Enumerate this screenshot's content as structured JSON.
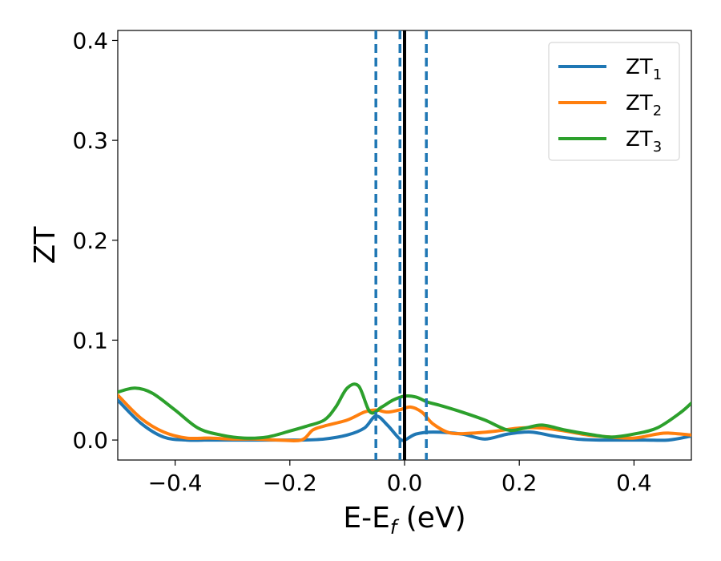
{
  "chart_data": {
    "type": "line",
    "xlabel": "E-E",
    "xlabel_sub": "f",
    "xlabel_unit": " (eV)",
    "ylabel": "ZT",
    "xlim": [
      -0.5,
      0.5
    ],
    "ylim": [
      -0.02,
      0.41
    ],
    "xticks": [
      -0.4,
      -0.2,
      0.0,
      0.2,
      0.4
    ],
    "xtick_labels": [
      "−0.4",
      "−0.2",
      "0.0",
      "0.2",
      "0.4"
    ],
    "yticks": [
      0.0,
      0.1,
      0.2,
      0.3,
      0.4
    ],
    "ytick_labels": [
      "0.0",
      "0.1",
      "0.2",
      "0.3",
      "0.4"
    ],
    "grid": false,
    "legend_position": "top-right",
    "series": [
      {
        "name": "ZT",
        "name_sub": "1",
        "color": "#1f77b4",
        "x": [
          -0.5,
          -0.46,
          -0.42,
          -0.38,
          -0.34,
          -0.3,
          -0.26,
          -0.22,
          -0.18,
          -0.14,
          -0.1,
          -0.07,
          -0.05,
          -0.03,
          -0.01,
          0.0,
          0.02,
          0.05,
          0.1,
          0.14,
          0.18,
          0.22,
          0.26,
          0.3,
          0.34,
          0.38,
          0.42,
          0.46,
          0.5
        ],
        "y": [
          0.04,
          0.017,
          0.003,
          0.0,
          0.0,
          0.0,
          0.0,
          0.0,
          0.0,
          0.001,
          0.005,
          0.012,
          0.024,
          0.015,
          0.002,
          0.0,
          0.006,
          0.008,
          0.006,
          0.001,
          0.006,
          0.008,
          0.004,
          0.001,
          0.0,
          0.0,
          0.0,
          0.0,
          0.004
        ]
      },
      {
        "name": "ZT",
        "name_sub": "2",
        "color": "#ff7f0e",
        "x": [
          -0.5,
          -0.46,
          -0.42,
          -0.38,
          -0.34,
          -0.3,
          -0.26,
          -0.22,
          -0.18,
          -0.16,
          -0.14,
          -0.1,
          -0.07,
          -0.05,
          -0.03,
          -0.01,
          0.01,
          0.03,
          0.05,
          0.08,
          0.12,
          0.16,
          0.2,
          0.24,
          0.28,
          0.32,
          0.36,
          0.4,
          0.44,
          0.46,
          0.5
        ],
        "y": [
          0.045,
          0.022,
          0.008,
          0.002,
          0.002,
          0.001,
          0.001,
          0.0,
          0.0,
          0.01,
          0.014,
          0.02,
          0.028,
          0.03,
          0.028,
          0.03,
          0.033,
          0.028,
          0.016,
          0.007,
          0.007,
          0.009,
          0.012,
          0.012,
          0.009,
          0.005,
          0.003,
          0.002,
          0.006,
          0.007,
          0.005
        ]
      },
      {
        "name": "ZT",
        "name_sub": "3",
        "color": "#2ca02c",
        "x": [
          -0.5,
          -0.47,
          -0.44,
          -0.4,
          -0.36,
          -0.32,
          -0.28,
          -0.24,
          -0.2,
          -0.17,
          -0.14,
          -0.12,
          -0.1,
          -0.08,
          -0.06,
          -0.04,
          -0.02,
          0.0,
          0.02,
          0.04,
          0.06,
          0.1,
          0.14,
          0.18,
          0.21,
          0.24,
          0.28,
          0.32,
          0.36,
          0.4,
          0.44,
          0.48,
          0.5
        ],
        "y": [
          0.048,
          0.052,
          0.047,
          0.03,
          0.012,
          0.005,
          0.002,
          0.003,
          0.009,
          0.014,
          0.02,
          0.033,
          0.052,
          0.054,
          0.028,
          0.033,
          0.04,
          0.044,
          0.043,
          0.038,
          0.035,
          0.028,
          0.02,
          0.01,
          0.012,
          0.015,
          0.01,
          0.006,
          0.003,
          0.006,
          0.012,
          0.027,
          0.037
        ]
      }
    ],
    "vlines": [
      {
        "x": -0.05,
        "style": "dashed",
        "color": "#1f77b4"
      },
      {
        "x": -0.008,
        "style": "dashed",
        "color": "#1f77b4"
      },
      {
        "x": 0.038,
        "style": "dashed",
        "color": "#1f77b4"
      },
      {
        "x": 0.0,
        "style": "solid",
        "color": "#000000"
      }
    ]
  }
}
